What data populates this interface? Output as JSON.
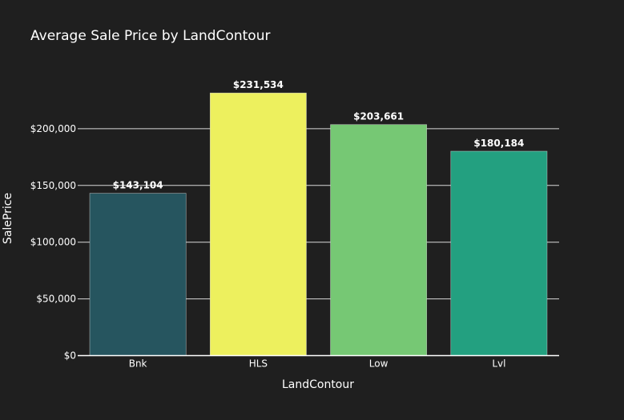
{
  "chart_data": {
    "type": "bar",
    "title": "Average Sale Price by LandContour",
    "xlabel": "LandContour",
    "ylabel": "SalePrice",
    "categories": [
      "Bnk",
      "HLS",
      "Low",
      "Lvl"
    ],
    "values": [
      143104,
      231534,
      203661,
      180184
    ],
    "data_labels": [
      "$143,104",
      "$231,534",
      "$203,661",
      "$180,184"
    ],
    "bar_colors": [
      "#26555f",
      "#edf05e",
      "#76c874",
      "#23a080"
    ],
    "ylim": [
      0,
      250000
    ],
    "yticks": [
      0,
      50000,
      100000,
      150000,
      200000
    ],
    "ytick_labels": [
      "$0",
      "$50,000",
      "$100,000",
      "$150,000",
      "$200,000"
    ],
    "grid": true,
    "legend": "none"
  },
  "colors": {
    "background": "#1f1f1f",
    "text": "#ffffff",
    "grid": "#d9d9d9"
  }
}
